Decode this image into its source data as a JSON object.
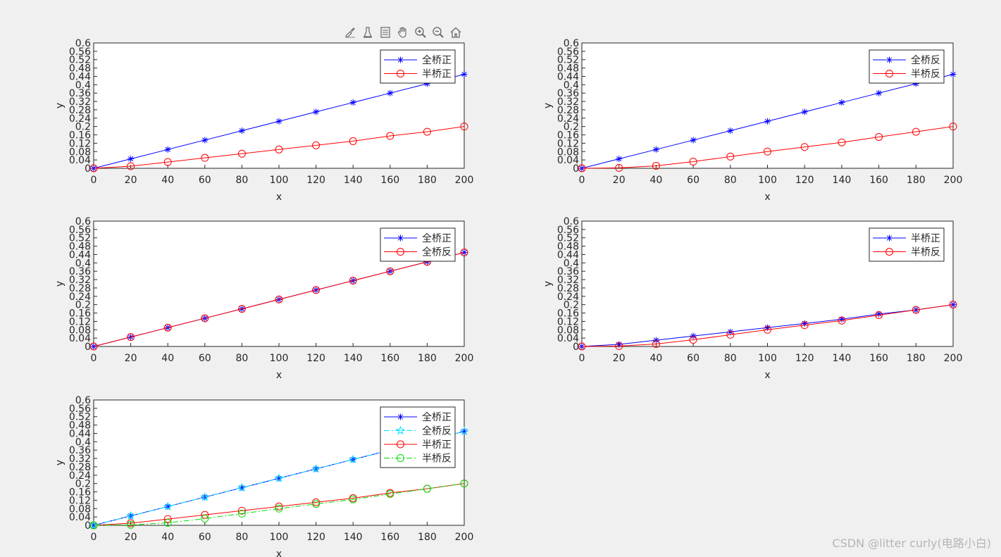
{
  "toolbar": {
    "buttons": [
      {
        "name": "brush-icon"
      },
      {
        "name": "datatip-icon"
      },
      {
        "name": "legend-toggle-icon"
      },
      {
        "name": "pan-hand-icon"
      },
      {
        "name": "zoom-in-icon"
      },
      {
        "name": "zoom-out-icon"
      },
      {
        "name": "home-icon"
      }
    ]
  },
  "watermark": "CSDN @litter curly(电路小白)",
  "chart_data": [
    {
      "type": "line",
      "xlabel": "x",
      "ylabel": "y",
      "xlim": [
        0,
        200
      ],
      "ylim": [
        0,
        0.6
      ],
      "xticks": [
        0,
        20,
        40,
        60,
        80,
        100,
        120,
        140,
        160,
        180,
        200
      ],
      "yticks": [
        0,
        0.04,
        0.08,
        0.12,
        0.16,
        0.2,
        0.24,
        0.28,
        0.32,
        0.36,
        0.4,
        0.44,
        0.48,
        0.52,
        0.56,
        0.6
      ],
      "legend_position": "top-right",
      "x": [
        0,
        20,
        40,
        60,
        80,
        100,
        120,
        140,
        160,
        180,
        200
      ],
      "series": [
        {
          "name": "全桥正",
          "color": "#0000ff",
          "marker": "asterisk",
          "dash": "solid",
          "values": [
            0,
            0.045,
            0.09,
            0.135,
            0.18,
            0.225,
            0.27,
            0.315,
            0.36,
            0.405,
            0.45
          ]
        },
        {
          "name": "半桥正",
          "color": "#ff0000",
          "marker": "circle",
          "dash": "solid",
          "values": [
            0,
            0.01,
            0.03,
            0.05,
            0.07,
            0.09,
            0.11,
            0.13,
            0.155,
            0.175,
            0.2
          ]
        }
      ]
    },
    {
      "type": "line",
      "xlabel": "x",
      "ylabel": "y",
      "xlim": [
        0,
        200
      ],
      "ylim": [
        0,
        0.6
      ],
      "xticks": [
        0,
        20,
        40,
        60,
        80,
        100,
        120,
        140,
        160,
        180,
        200
      ],
      "yticks": [
        0,
        0.04,
        0.08,
        0.12,
        0.16,
        0.2,
        0.24,
        0.28,
        0.32,
        0.36,
        0.4,
        0.44,
        0.48,
        0.52,
        0.56,
        0.6
      ],
      "legend_position": "top-right",
      "x": [
        0,
        20,
        40,
        60,
        80,
        100,
        120,
        140,
        160,
        180,
        200
      ],
      "series": [
        {
          "name": "全桥反",
          "color": "#0000ff",
          "marker": "asterisk",
          "dash": "solid",
          "values": [
            0,
            0.045,
            0.09,
            0.135,
            0.18,
            0.225,
            0.27,
            0.315,
            0.36,
            0.405,
            0.45
          ]
        },
        {
          "name": "半桥反",
          "color": "#ff0000",
          "marker": "circle",
          "dash": "solid",
          "values": [
            0,
            0.002,
            0.012,
            0.032,
            0.056,
            0.08,
            0.102,
            0.124,
            0.15,
            0.175,
            0.2
          ]
        }
      ]
    },
    {
      "type": "line",
      "xlabel": "x",
      "ylabel": "y",
      "xlim": [
        0,
        200
      ],
      "ylim": [
        0,
        0.6
      ],
      "xticks": [
        0,
        20,
        40,
        60,
        80,
        100,
        120,
        140,
        160,
        180,
        200
      ],
      "yticks": [
        0,
        0.04,
        0.08,
        0.12,
        0.16,
        0.2,
        0.24,
        0.28,
        0.32,
        0.36,
        0.4,
        0.44,
        0.48,
        0.52,
        0.56,
        0.6
      ],
      "legend_position": "top-right",
      "x": [
        0,
        20,
        40,
        60,
        80,
        100,
        120,
        140,
        160,
        180,
        200
      ],
      "series": [
        {
          "name": "全桥正",
          "color": "#0000ff",
          "marker": "asterisk",
          "dash": "solid",
          "values": [
            0,
            0.045,
            0.09,
            0.135,
            0.18,
            0.225,
            0.27,
            0.315,
            0.36,
            0.405,
            0.45
          ]
        },
        {
          "name": "全桥反",
          "color": "#ff0000",
          "marker": "circle",
          "dash": "solid",
          "values": [
            0,
            0.045,
            0.09,
            0.135,
            0.18,
            0.225,
            0.27,
            0.315,
            0.36,
            0.405,
            0.45
          ]
        }
      ]
    },
    {
      "type": "line",
      "xlabel": "x",
      "ylabel": "y",
      "xlim": [
        0,
        200
      ],
      "ylim": [
        0,
        0.6
      ],
      "xticks": [
        0,
        20,
        40,
        60,
        80,
        100,
        120,
        140,
        160,
        180,
        200
      ],
      "yticks": [
        0,
        0.04,
        0.08,
        0.12,
        0.16,
        0.2,
        0.24,
        0.28,
        0.32,
        0.36,
        0.4,
        0.44,
        0.48,
        0.52,
        0.56,
        0.6
      ],
      "legend_position": "top-right",
      "x": [
        0,
        20,
        40,
        60,
        80,
        100,
        120,
        140,
        160,
        180,
        200
      ],
      "series": [
        {
          "name": "半桥正",
          "color": "#0000ff",
          "marker": "asterisk",
          "dash": "solid",
          "values": [
            0,
            0.01,
            0.03,
            0.05,
            0.07,
            0.09,
            0.11,
            0.13,
            0.155,
            0.175,
            0.2
          ]
        },
        {
          "name": "半桥反",
          "color": "#ff0000",
          "marker": "circle",
          "dash": "solid",
          "values": [
            0,
            0.002,
            0.012,
            0.032,
            0.056,
            0.08,
            0.102,
            0.124,
            0.15,
            0.175,
            0.2
          ]
        }
      ]
    },
    {
      "type": "line",
      "xlabel": "x",
      "ylabel": "y",
      "xlim": [
        0,
        200
      ],
      "ylim": [
        0,
        0.6
      ],
      "xticks": [
        0,
        20,
        40,
        60,
        80,
        100,
        120,
        140,
        160,
        180,
        200
      ],
      "yticks": [
        0,
        0.04,
        0.08,
        0.12,
        0.16,
        0.2,
        0.24,
        0.28,
        0.32,
        0.36,
        0.4,
        0.44,
        0.48,
        0.52,
        0.56,
        0.6
      ],
      "legend_position": "top-right",
      "x": [
        0,
        20,
        40,
        60,
        80,
        100,
        120,
        140,
        160,
        180,
        200
      ],
      "series": [
        {
          "name": "全桥正",
          "color": "#0000ff",
          "marker": "asterisk",
          "dash": "solid",
          "values": [
            0,
            0.045,
            0.09,
            0.135,
            0.18,
            0.225,
            0.27,
            0.315,
            0.36,
            0.405,
            0.45
          ]
        },
        {
          "name": "全桥反",
          "color": "#00e0ff",
          "marker": "star",
          "dash": "dashdot",
          "values": [
            0,
            0.045,
            0.09,
            0.135,
            0.18,
            0.225,
            0.27,
            0.315,
            0.36,
            0.405,
            0.45
          ]
        },
        {
          "name": "半桥正",
          "color": "#ff0000",
          "marker": "circle",
          "dash": "solid",
          "values": [
            0,
            0.01,
            0.03,
            0.05,
            0.07,
            0.09,
            0.11,
            0.13,
            0.155,
            0.175,
            0.2
          ]
        },
        {
          "name": "半桥反",
          "color": "#00dd00",
          "marker": "circle",
          "dash": "dashdot",
          "values": [
            0,
            0.002,
            0.012,
            0.032,
            0.056,
            0.08,
            0.102,
            0.124,
            0.15,
            0.175,
            0.2
          ]
        }
      ]
    }
  ]
}
